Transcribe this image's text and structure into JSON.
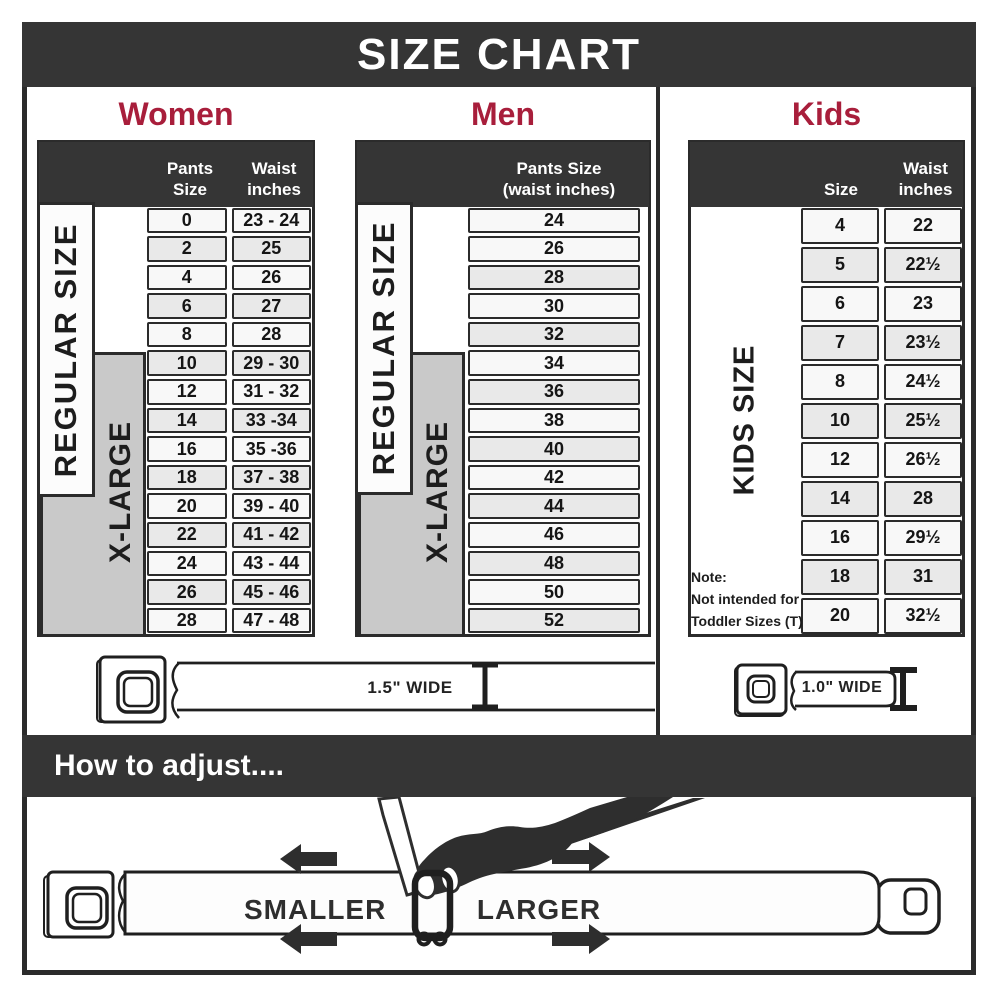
{
  "title": "SIZE CHART",
  "sections": {
    "women": {
      "heading": "Women",
      "header": {
        "col1": "Pants Size",
        "col2_line1": "Waist",
        "col2_line2": "inches"
      },
      "labels": {
        "regular": "REGULAR SIZE",
        "xlarge": "X-LARGE"
      },
      "rows": [
        {
          "size": "0",
          "waist": "23 - 24"
        },
        {
          "size": "2",
          "waist": "25"
        },
        {
          "size": "4",
          "waist": "26"
        },
        {
          "size": "6",
          "waist": "27"
        },
        {
          "size": "8",
          "waist": "28"
        },
        {
          "size": "10",
          "waist": "29 - 30"
        },
        {
          "size": "12",
          "waist": "31 - 32"
        },
        {
          "size": "14",
          "waist": "33 -34"
        },
        {
          "size": "16",
          "waist": "35 -36"
        },
        {
          "size": "18",
          "waist": "37 - 38"
        },
        {
          "size": "20",
          "waist": "39 - 40"
        },
        {
          "size": "22",
          "waist": "41 - 42"
        },
        {
          "size": "24",
          "waist": "43 - 44"
        },
        {
          "size": "26",
          "waist": "45 - 46"
        },
        {
          "size": "28",
          "waist": "47 - 48"
        }
      ],
      "belt_width_label": "1.5\" WIDE"
    },
    "men": {
      "heading": "Men",
      "header": {
        "col1_line1": "Pants Size",
        "col1_line2": "(waist inches)"
      },
      "labels": {
        "regular": "REGULAR SIZE",
        "xlarge": "X-LARGE"
      },
      "rows": [
        "24",
        "26",
        "28",
        "30",
        "32",
        "34",
        "36",
        "38",
        "40",
        "42",
        "44",
        "46",
        "48",
        "50",
        "52"
      ]
    },
    "kids": {
      "heading": "Kids",
      "header": {
        "col1": "Size",
        "col2_line1": "Waist",
        "col2_line2": "inches"
      },
      "label": "KIDS SIZE",
      "note_line1": "Note:",
      "note_line2": "Not intended for",
      "note_line3": "Toddler Sizes (T)",
      "rows": [
        {
          "size": "4",
          "waist": "22"
        },
        {
          "size": "5",
          "waist": "22½"
        },
        {
          "size": "6",
          "waist": "23"
        },
        {
          "size": "7",
          "waist": "23½"
        },
        {
          "size": "8",
          "waist": "24½"
        },
        {
          "size": "10",
          "waist": "25½"
        },
        {
          "size": "12",
          "waist": "26½"
        },
        {
          "size": "14",
          "waist": "28"
        },
        {
          "size": "16",
          "waist": "29½"
        },
        {
          "size": "18",
          "waist": "31"
        },
        {
          "size": "20",
          "waist": "32½"
        }
      ],
      "belt_width_label": "1.0\" WIDE"
    }
  },
  "adjust": {
    "heading": "How to adjust....",
    "smaller": "SMALLER",
    "larger": "LARGER"
  },
  "colors": {
    "dark": "#353535",
    "line": "#2b2b2b",
    "accent_red": "#a81e3b",
    "row_light": "#f8f8f8",
    "row_shaded": "#e9e9e9",
    "label_gray": "#c9c9c9"
  }
}
